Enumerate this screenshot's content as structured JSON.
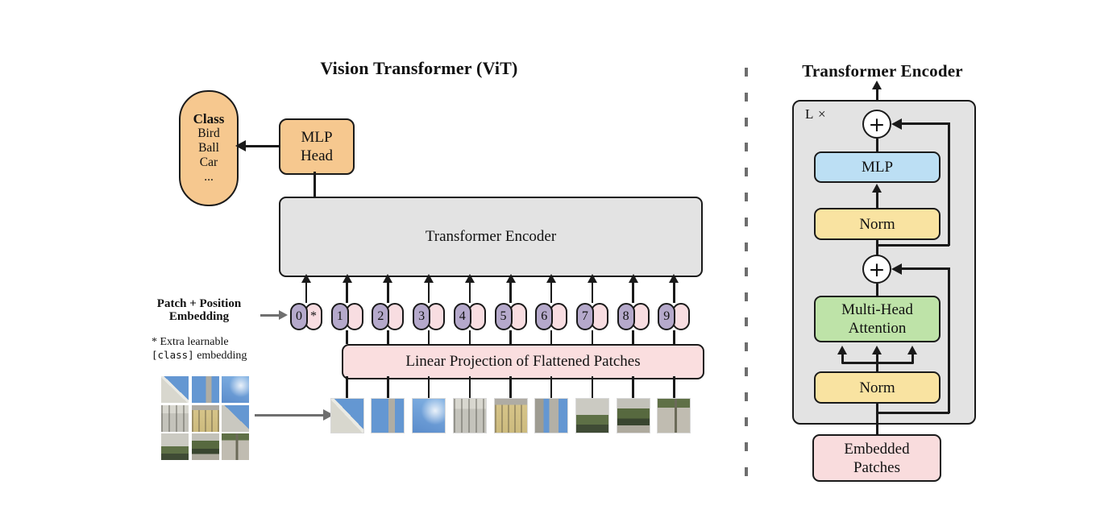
{
  "left": {
    "title": "Vision Transformer (ViT)",
    "class_pill": {
      "header": "Class",
      "items": [
        "Bird",
        "Ball",
        "Car",
        "..."
      ]
    },
    "mlp_head": {
      "line1": "MLP",
      "line2": "Head"
    },
    "encoder_label": "Transformer Encoder",
    "patch_position_label": {
      "line1": "Patch + Position",
      "line2": "Embedding"
    },
    "note": {
      "line1": "* Extra learnable",
      "line2_code": "[class]",
      "line2_text": " embedding"
    },
    "linear_projection_label": "Linear Projection of Flattened Patches",
    "tokens": [
      {
        "num": "0",
        "extra": "*"
      },
      {
        "num": "1",
        "extra": ""
      },
      {
        "num": "2",
        "extra": ""
      },
      {
        "num": "3",
        "extra": ""
      },
      {
        "num": "4",
        "extra": ""
      },
      {
        "num": "5",
        "extra": ""
      },
      {
        "num": "6",
        "extra": ""
      },
      {
        "num": "7",
        "extra": ""
      },
      {
        "num": "8",
        "extra": ""
      },
      {
        "num": "9",
        "extra": ""
      }
    ],
    "patch_row_kinds": [
      "cornice",
      "tower-sky",
      "sky",
      "facade-white",
      "facade-yellow",
      "tower-building",
      "garden-building",
      "hedge",
      "pavement"
    ],
    "grid_kinds": [
      "cornice",
      "tower-sky",
      "sky",
      "facade-white",
      "facade-yellow",
      "building-sky",
      "garden-building",
      "hedge",
      "pavement"
    ]
  },
  "right": {
    "title": "Transformer Encoder",
    "loop_label": "L ×",
    "plus": "+",
    "mlp_label": "MLP",
    "norm_top_label": "Norm",
    "mha": {
      "line1": "Multi-Head",
      "line2": "Attention"
    },
    "norm_bottom_label": "Norm",
    "embedded": {
      "line1": "Embedded",
      "line2": "Patches"
    }
  },
  "colors": {
    "orange": "#F6C88F",
    "gray_box": "#E3E3E3",
    "blue": "#BCDFF4",
    "yellow": "#F9E3A1",
    "green": "#BEE3A8",
    "pink": "#FADEDF",
    "token_purple": "#B5A9CB",
    "token_pink": "#F8DDE1",
    "line_black": "#1a1a1a",
    "arrow_gray": "#6f6f6f"
  }
}
